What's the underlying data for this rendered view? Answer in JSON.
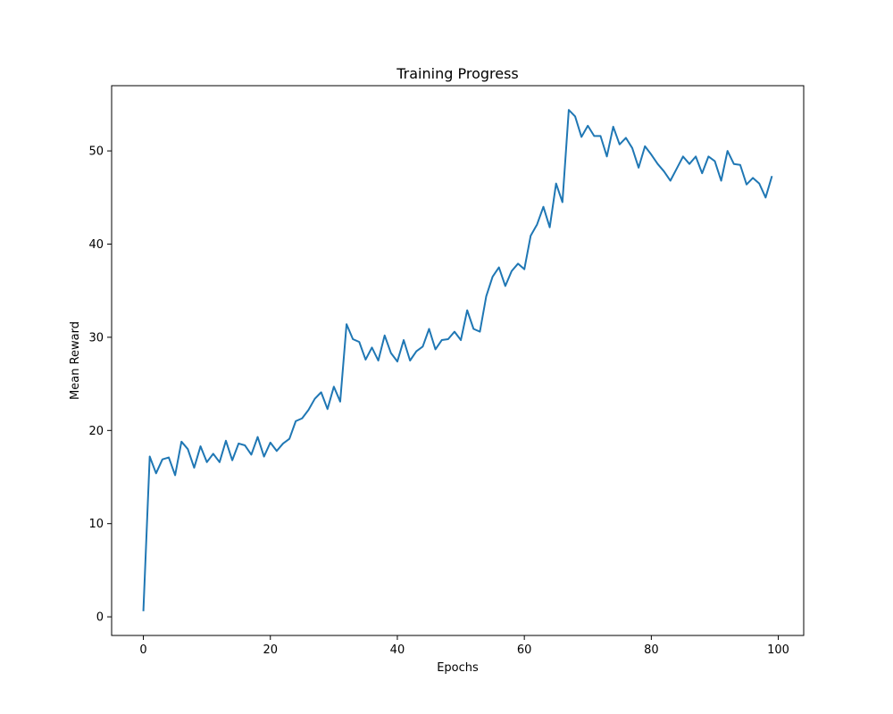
{
  "chart_data": {
    "type": "line",
    "title": "Training Progress",
    "xlabel": "Epochs",
    "ylabel": "Mean Reward",
    "xlim": [
      -5,
      104
    ],
    "ylim": [
      -2,
      57
    ],
    "xticks": [
      0,
      20,
      40,
      60,
      80,
      100
    ],
    "yticks": [
      0,
      10,
      20,
      30,
      40,
      50
    ],
    "grid": false,
    "line_color": "#1f77b4",
    "series": [
      {
        "x": [
          0,
          1,
          2,
          3,
          4,
          5,
          6,
          7,
          8,
          9,
          10,
          11,
          12,
          13,
          14,
          15,
          16,
          17,
          18,
          19,
          20,
          21,
          22,
          23,
          24,
          25,
          26,
          27,
          28,
          29,
          30,
          31,
          32,
          33,
          34,
          35,
          36,
          37,
          38,
          39,
          40,
          41,
          42,
          43,
          44,
          45,
          46,
          47,
          48,
          49,
          50,
          51,
          52,
          53,
          54,
          55,
          56,
          57,
          58,
          59,
          60,
          61,
          62,
          63,
          64,
          65,
          66,
          67,
          68,
          69,
          70,
          71,
          72,
          73,
          74,
          75,
          76,
          77,
          78,
          79,
          80,
          81,
          82,
          83,
          84,
          85,
          86,
          87,
          88,
          89,
          90,
          91,
          92,
          93,
          94,
          95,
          96,
          97,
          98,
          99
        ],
        "y": [
          0.6,
          17.2,
          15.4,
          16.9,
          17.1,
          15.2,
          18.8,
          18.0,
          16.0,
          18.3,
          16.6,
          17.5,
          16.6,
          18.9,
          16.8,
          18.6,
          18.4,
          17.4,
          19.3,
          17.2,
          18.7,
          17.8,
          18.6,
          19.1,
          21.0,
          21.3,
          22.2,
          23.4,
          24.1,
          22.3,
          24.7,
          23.1,
          31.4,
          29.8,
          29.5,
          27.6,
          28.9,
          27.5,
          30.2,
          28.3,
          27.4,
          29.7,
          27.5,
          28.5,
          29.0,
          30.9,
          28.7,
          29.7,
          29.8,
          30.6,
          29.7,
          32.9,
          30.9,
          30.6,
          34.4,
          36.5,
          37.5,
          35.5,
          37.1,
          37.9,
          37.3,
          40.9,
          42.1,
          44.0,
          41.8,
          46.5,
          44.5,
          54.4,
          53.7,
          51.5,
          52.7,
          51.6,
          51.6,
          49.4,
          52.6,
          50.7,
          51.4,
          50.3,
          48.2,
          50.5,
          49.6,
          48.6,
          47.8,
          46.8,
          48.1,
          49.4,
          48.6,
          49.4,
          47.6,
          49.4,
          48.9,
          46.8,
          50.0,
          48.6,
          48.5,
          46.4,
          47.1,
          46.5,
          45.0,
          47.3
        ]
      }
    ]
  }
}
